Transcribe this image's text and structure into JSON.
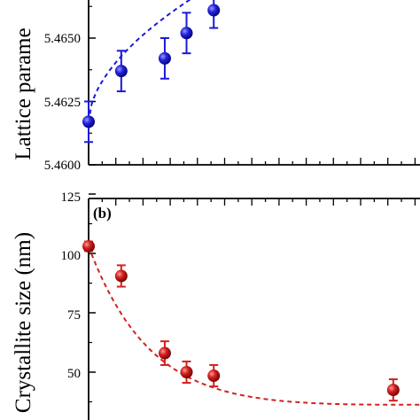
{
  "chart_data": [
    {
      "type": "scatter",
      "panel": "a",
      "ylabel": "Lattice parame",
      "ylim": [
        5.46,
        5.4675
      ],
      "y_ticks": [
        "5.4600",
        "5.4625",
        "5.4650"
      ],
      "marker_color": "#1a1adb",
      "fit_color": "#1a1adb",
      "points": [
        {
          "x": 0.0,
          "y": 5.4617,
          "err": 0.0008
        },
        {
          "x": 1.2,
          "y": 5.4637,
          "err": 0.0008
        },
        {
          "x": 2.8,
          "y": 5.4642,
          "err": 0.0008
        },
        {
          "x": 3.6,
          "y": 5.4652,
          "err": 0.0008
        },
        {
          "x": 4.6,
          "y": 5.4661,
          "err": 0.0007
        }
      ],
      "fit": {
        "style": "dashed",
        "from": [
          0.0,
          5.4617
        ],
        "to": [
          6.6,
          5.4683
        ]
      }
    },
    {
      "type": "scatter",
      "panel": "b",
      "panel_label": "(b)",
      "ylabel": "Crystallite size (nm)",
      "ylim": [
        32,
        125
      ],
      "y_ticks": [
        "50",
        "75",
        "100",
        "125"
      ],
      "marker_color": "#d42020",
      "fit_color": "#d42020",
      "points": [
        {
          "x": 0.0,
          "y": 103,
          "err": 2
        },
        {
          "x": 1.2,
          "y": 90.5,
          "err": 4.5
        },
        {
          "x": 2.8,
          "y": 58,
          "err": 5
        },
        {
          "x": 3.6,
          "y": 50,
          "err": 4.5
        },
        {
          "x": 4.6,
          "y": 48.5,
          "err": 4.5
        },
        {
          "x": 11.2,
          "y": 42.5,
          "err": 4.5
        }
      ],
      "fit": {
        "style": "dashed",
        "from": [
          0.0,
          103
        ],
        "asymptote": 31.5,
        "decay": 2.3
      }
    }
  ]
}
